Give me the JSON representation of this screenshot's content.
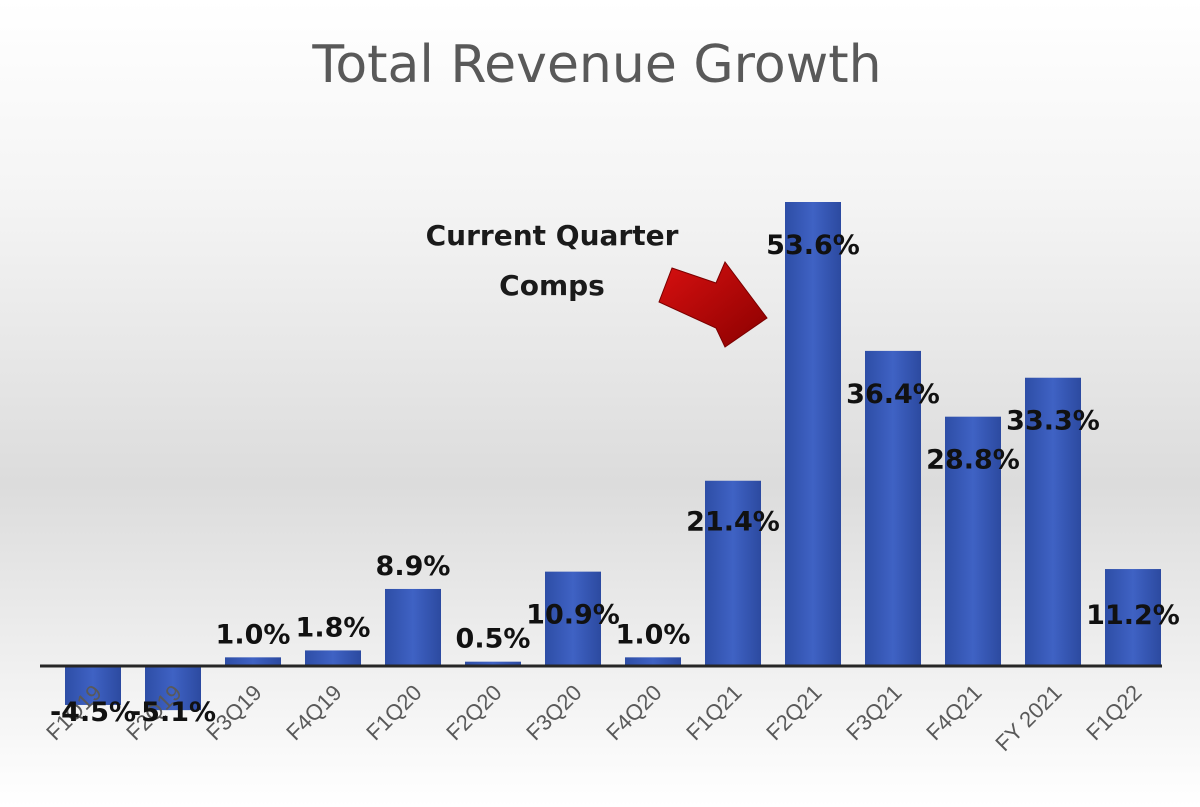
{
  "chart_data": {
    "type": "bar",
    "title": "Total Revenue Growth",
    "categories": [
      "F1Q19",
      "F2Q19",
      "F3Q19",
      "F4Q19",
      "F1Q20",
      "F2Q20",
      "F3Q20",
      "F4Q20",
      "F1Q21",
      "F2Q21",
      "F3Q21",
      "F4Q21",
      "FY 2021",
      "F1Q22"
    ],
    "values": [
      -4.5,
      -5.1,
      1.0,
      1.8,
      8.9,
      0.5,
      10.9,
      1.0,
      21.4,
      53.6,
      36.4,
      28.8,
      33.3,
      11.2
    ],
    "data_labels": [
      "-4.5%",
      "-5.1%",
      "1.0%",
      "1.8%",
      "8.9%",
      "0.5%",
      "10.9%",
      "1.0%",
      "21.4%",
      "53.6%",
      "36.4%",
      "28.8%",
      "33.3%",
      "11.2%"
    ],
    "ylim": [
      -6,
      56
    ],
    "grid": false,
    "legend": "none",
    "annotation": {
      "lines": [
        "Current Quarter",
        "Comps"
      ],
      "target_category": "F2Q21"
    },
    "colors": {
      "bar": "#3a5bb8",
      "arrow": "#b00000",
      "title": "#595959"
    }
  }
}
